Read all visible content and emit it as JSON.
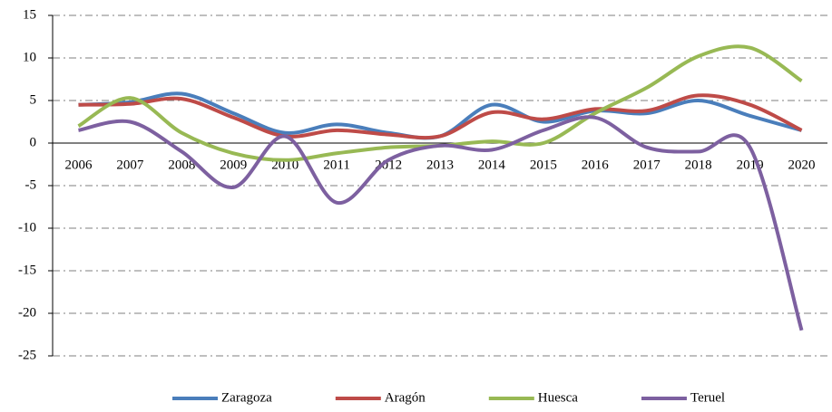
{
  "chart_data": {
    "type": "line",
    "categories": [
      "2006",
      "2007",
      "2008",
      "2009",
      "2010",
      "2011",
      "2012",
      "2013",
      "2014",
      "2015",
      "2016",
      "2017",
      "2018",
      "2019",
      "2020"
    ],
    "series": [
      {
        "name": "Zaragoza",
        "color": "#4a7ebb",
        "values": [
          4.5,
          4.8,
          5.8,
          3.5,
          1.2,
          2.2,
          1.2,
          0.8,
          4.5,
          2.5,
          3.8,
          3.5,
          5.0,
          3.2,
          1.5
        ]
      },
      {
        "name": "Aragón",
        "color": "#be4b48",
        "values": [
          4.5,
          4.6,
          5.2,
          3.0,
          0.8,
          1.5,
          1.0,
          0.8,
          3.6,
          2.8,
          4.0,
          3.8,
          5.6,
          4.5,
          1.5
        ]
      },
      {
        "name": "Huesca",
        "color": "#98b954",
        "values": [
          2.0,
          5.3,
          1.2,
          -1.2,
          -2.0,
          -1.2,
          -0.5,
          -0.3,
          0.2,
          0.0,
          3.5,
          6.5,
          10.2,
          11.2,
          7.3
        ]
      },
      {
        "name": "Teruel",
        "color": "#7d60a0",
        "values": [
          1.5,
          2.5,
          -1.0,
          -5.2,
          0.8,
          -7.0,
          -2.0,
          -0.3,
          -0.8,
          1.5,
          3.0,
          -0.5,
          -1.0,
          -0.5,
          -22.0
        ]
      }
    ],
    "ylim": [
      -25,
      15
    ],
    "yticks": [
      -25,
      -20,
      -15,
      -10,
      -5,
      0,
      5,
      10,
      15
    ],
    "grid": true
  }
}
